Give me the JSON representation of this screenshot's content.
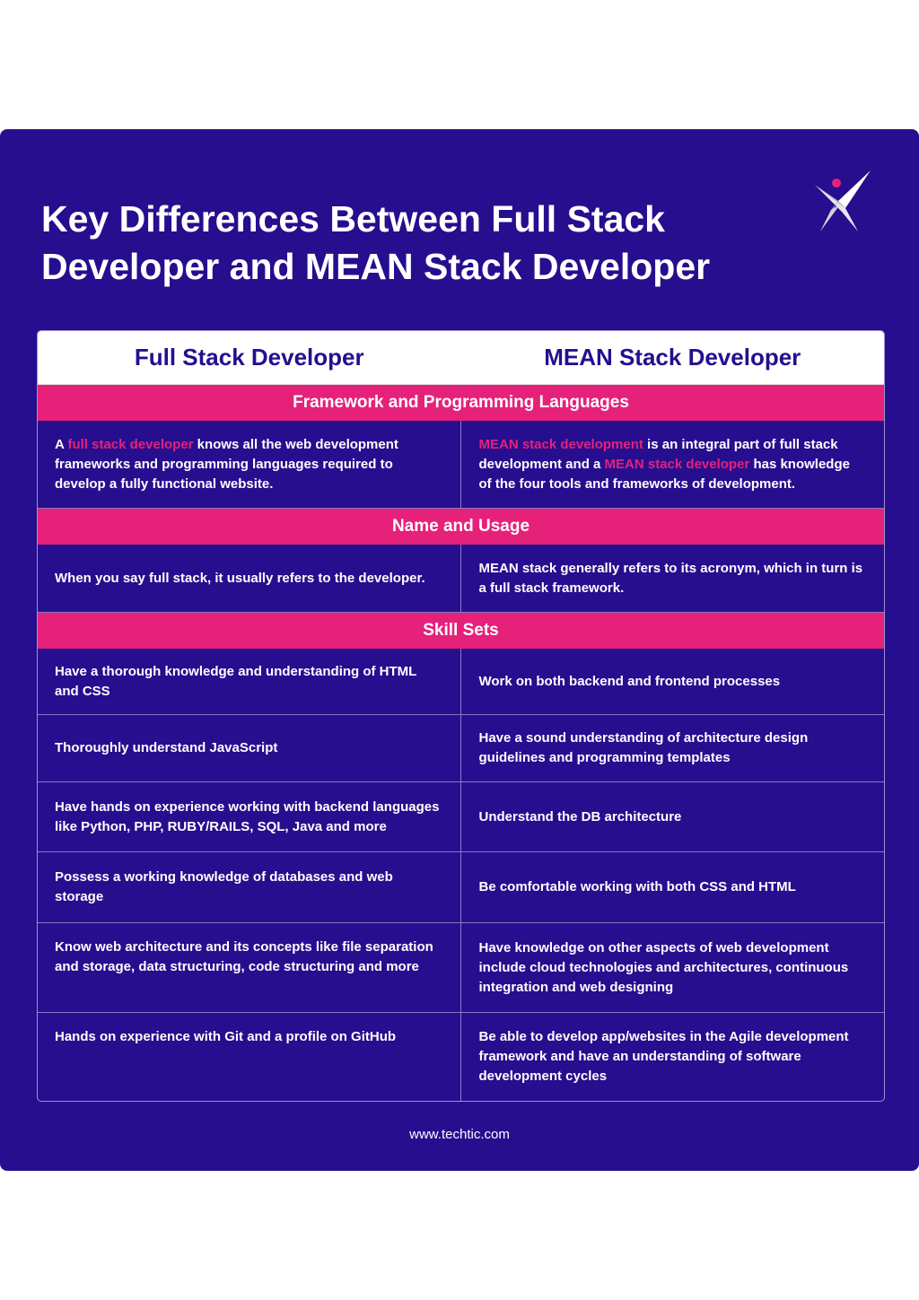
{
  "title_lines": [
    "Key Differences Between Full Stack",
    "Developer and MEAN Stack Developer"
  ],
  "brand": {
    "logo_icon": "techtic-x-logo-icon",
    "accent": "#e5217a",
    "background": "#260e8f"
  },
  "table": {
    "headers": [
      "Full Stack Developer",
      "MEAN Stack Developer"
    ],
    "sections": {
      "framework": {
        "title": "Framework and Programming Languages",
        "left": {
          "pre": "A ",
          "link": "full stack developer",
          "post": " knows all the web development frameworks and programming languages required to develop a fully functional website."
        },
        "right": {
          "link1": "MEAN stack development",
          "mid": " is an integral part of full stack development and a ",
          "link2": "MEAN stack developer",
          "post": " has knowledge of the four tools and frameworks of development."
        }
      },
      "usage": {
        "title": "Name and Usage",
        "left": "When you say full stack, it usually refers to the developer.",
        "right": "MEAN stack generally refers to its acronym, which in turn is a full stack framework."
      },
      "skills": {
        "title": "Skill Sets",
        "rows": [
          {
            "left": "Have a thorough knowledge and understanding of HTML and CSS",
            "right": "Work on both backend and frontend processes"
          },
          {
            "left": "Thoroughly understand JavaScript",
            "right": "Have a sound understanding of architecture design guidelines and programming templates"
          },
          {
            "left": "Have hands on experience working with backend languages like Python, PHP, RUBY/RAILS, SQL, Java and more",
            "right": "Understand the DB architecture"
          },
          {
            "left": "Possess a working knowledge of databases and web storage",
            "right": "Be comfortable working with both CSS and HTML"
          },
          {
            "left": "Know web architecture and its concepts like file separation and storage, data structuring, code structuring and more",
            "right": "Have knowledge on other aspects of web development include cloud technologies and architectures, continuous integration and web designing"
          },
          {
            "left": "Hands on experience with Git and a profile on GitHub",
            "right": "Be able to develop app/websites in the Agile development framework and have an understanding of software development cycles"
          }
        ]
      }
    }
  },
  "footer": "www.techtic.com"
}
